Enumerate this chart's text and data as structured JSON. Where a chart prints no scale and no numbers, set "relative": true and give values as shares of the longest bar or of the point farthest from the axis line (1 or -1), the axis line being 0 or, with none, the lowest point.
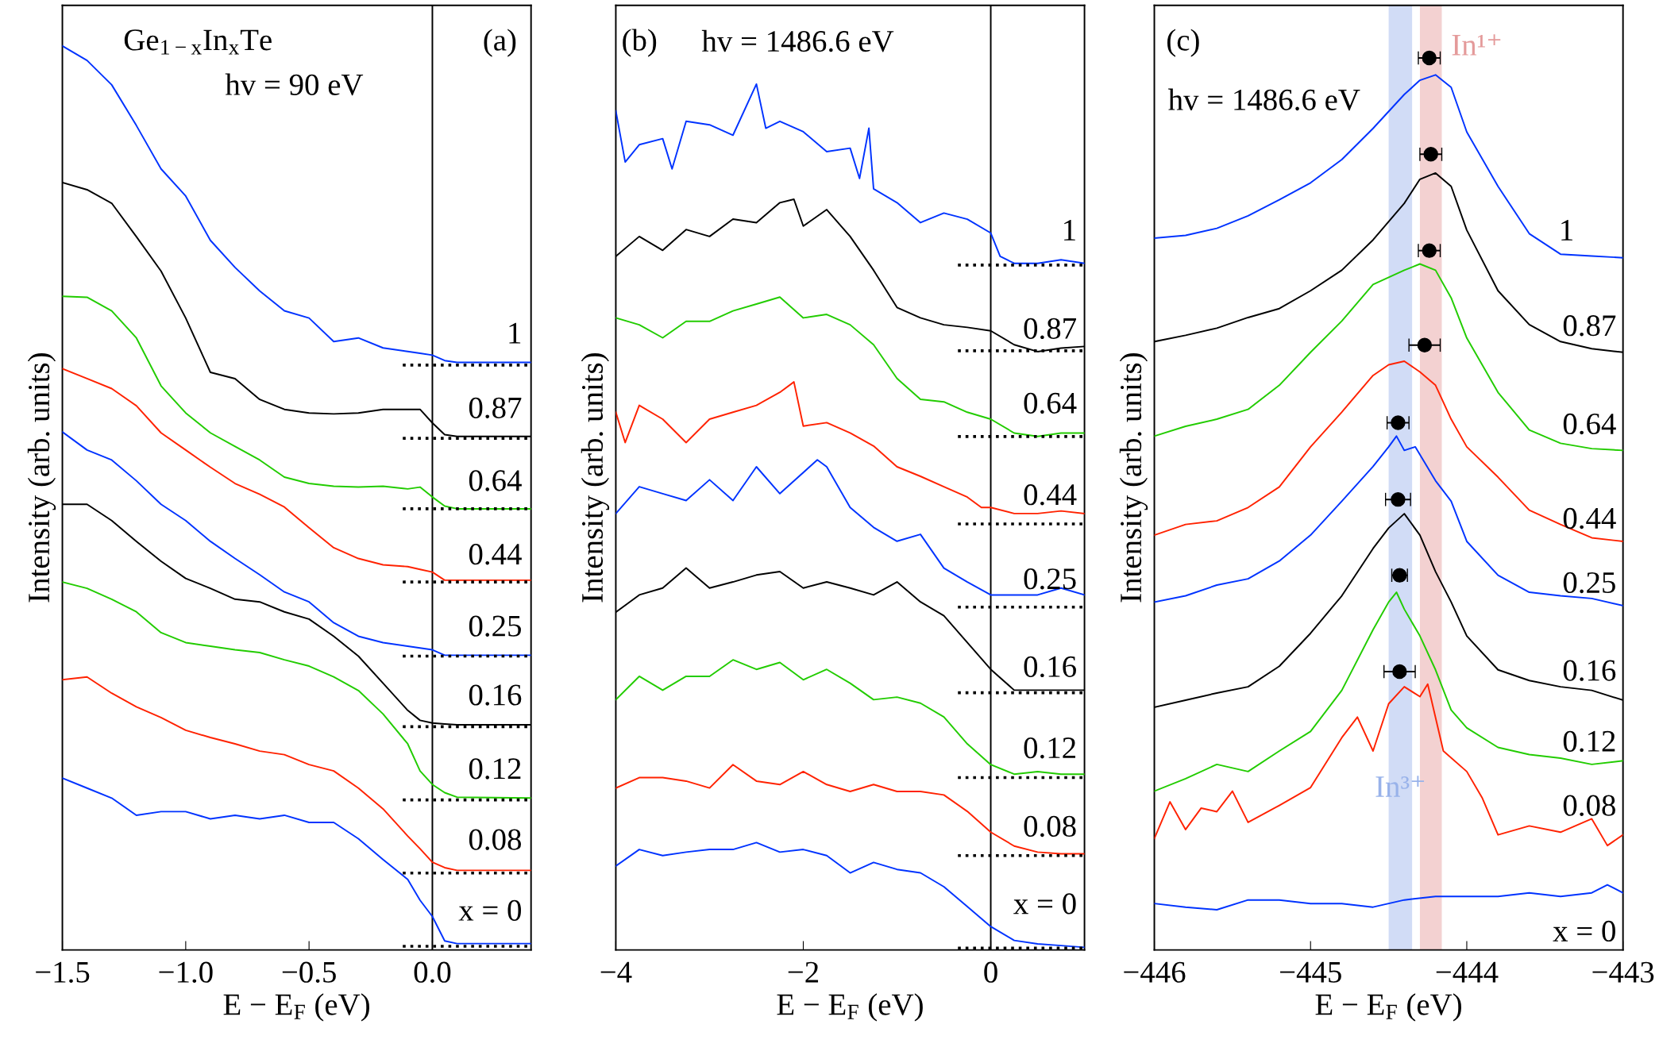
{
  "chart_data": [
    {
      "type": "line",
      "relative": true,
      "xlabel": "E − E$_{F}$ (eV)",
      "ylabel": "Intensity (arb. units)",
      "xlim": [
        -1.5,
        0.4
      ],
      "xticks": [
        {
          "value": -1.5,
          "label": "−1.5"
        },
        {
          "value": -1.0,
          "label": "−1.0"
        },
        {
          "value": -0.5,
          "label": "−0.5"
        },
        {
          "value": 0.0,
          "label": "0.0"
        }
      ],
      "tick_labels": "x",
      "grid": false,
      "legend": false,
      "marker": "none",
      "line_style": "solid",
      "ref_lines": [
        {
          "axis": "x",
          "value": 0,
          "color": "#000000",
          "line_style": "solid"
        }
      ],
      "annotations": [
        "(a)",
        "Ge$_{1−x}$In$_{x}$Te",
        "hv = 90 eV",
        "1",
        "0.87",
        "0.64",
        "0.44",
        "0.25",
        "0.16",
        "0.12",
        "0.08",
        "x = 0"
      ],
      "series": [
        {
          "color": "#0033ff",
          "x": [
            -1.5,
            -1.4,
            -1.3,
            -1.2,
            -1.1,
            -1.0,
            -0.9,
            -0.8,
            -0.7,
            -0.6,
            -0.5,
            -0.4,
            -0.3,
            -0.2,
            -0.1,
            -0.05,
            0,
            0.05,
            0.1,
            0.4
          ],
          "values": [
            1.0,
            0.984,
            0.957,
            0.912,
            0.864,
            0.834,
            0.785,
            0.755,
            0.729,
            0.707,
            0.699,
            0.673,
            0.677,
            0.666,
            0.662,
            0.66,
            0.658,
            0.652,
            0.65,
            0.65
          ]
        },
        {
          "color": "#000000",
          "x": [
            -1.5,
            -1.4,
            -1.3,
            -1.2,
            -1.1,
            -1.0,
            -0.9,
            -0.8,
            -0.7,
            -0.6,
            -0.5,
            -0.4,
            -0.3,
            -0.2,
            -0.1,
            -0.05,
            0,
            0.05,
            0.1,
            0.4
          ],
          "values": [
            0.849,
            0.841,
            0.826,
            0.789,
            0.751,
            0.699,
            0.639,
            0.632,
            0.609,
            0.598,
            0.594,
            0.593,
            0.594,
            0.598,
            0.598,
            0.598,
            0.583,
            0.57,
            0.568,
            0.568
          ]
        },
        {
          "color": "#22cc00",
          "x": [
            -1.5,
            -1.4,
            -1.3,
            -1.2,
            -1.1,
            -1.0,
            -0.9,
            -0.8,
            -0.7,
            -0.6,
            -0.5,
            -0.4,
            -0.3,
            -0.2,
            -0.1,
            -0.05,
            0,
            0.05,
            0.1,
            0.4
          ],
          "values": [
            0.723,
            0.722,
            0.707,
            0.677,
            0.624,
            0.594,
            0.572,
            0.557,
            0.542,
            0.523,
            0.516,
            0.513,
            0.512,
            0.513,
            0.51,
            0.512,
            0.501,
            0.491,
            0.488,
            0.488
          ]
        },
        {
          "color": "#ff2200",
          "x": [
            -1.5,
            -1.4,
            -1.3,
            -1.2,
            -1.1,
            -1.0,
            -0.9,
            -0.8,
            -0.7,
            -0.6,
            -0.5,
            -0.4,
            -0.3,
            -0.2,
            -0.1,
            -0.05,
            0,
            0.05,
            0.1,
            0.4
          ],
          "values": [
            0.643,
            0.632,
            0.621,
            0.602,
            0.572,
            0.553,
            0.534,
            0.516,
            0.504,
            0.49,
            0.467,
            0.445,
            0.433,
            0.426,
            0.424,
            0.421,
            0.418,
            0.409,
            0.409,
            0.409
          ]
        },
        {
          "color": "#0033ff",
          "x": [
            -1.5,
            -1.4,
            -1.3,
            -1.2,
            -1.1,
            -1.0,
            -0.9,
            -0.8,
            -0.7,
            -0.6,
            -0.5,
            -0.4,
            -0.3,
            -0.2,
            -0.1,
            -0.05,
            0,
            0.05,
            0.1,
            0.4
          ],
          "values": [
            0.573,
            0.553,
            0.542,
            0.519,
            0.493,
            0.475,
            0.452,
            0.433,
            0.415,
            0.396,
            0.385,
            0.362,
            0.347,
            0.34,
            0.336,
            0.334,
            0.332,
            0.326,
            0.326,
            0.326
          ]
        },
        {
          "color": "#000000",
          "x": [
            -1.5,
            -1.4,
            -1.3,
            -1.2,
            -1.1,
            -1.0,
            -0.9,
            -0.8,
            -0.7,
            -0.6,
            -0.5,
            -0.4,
            -0.3,
            -0.2,
            -0.1,
            -0.05,
            0,
            0.05,
            0.1,
            0.4
          ],
          "values": [
            0.493,
            0.493,
            0.475,
            0.452,
            0.43,
            0.411,
            0.4,
            0.388,
            0.385,
            0.374,
            0.366,
            0.347,
            0.325,
            0.295,
            0.265,
            0.254,
            0.251,
            0.25,
            0.249,
            0.249
          ]
        },
        {
          "color": "#22cc00",
          "x": [
            -1.5,
            -1.4,
            -1.3,
            -1.2,
            -1.1,
            -1.0,
            -0.9,
            -0.8,
            -0.7,
            -0.6,
            -0.5,
            -0.4,
            -0.3,
            -0.2,
            -0.1,
            -0.05,
            0,
            0.05,
            0.1,
            0.4
          ],
          "values": [
            0.407,
            0.4,
            0.388,
            0.374,
            0.351,
            0.34,
            0.336,
            0.332,
            0.329,
            0.321,
            0.314,
            0.302,
            0.287,
            0.261,
            0.228,
            0.198,
            0.183,
            0.174,
            0.169,
            0.168
          ]
        },
        {
          "color": "#ff2200",
          "x": [
            -1.5,
            -1.4,
            -1.3,
            -1.2,
            -1.1,
            -1.0,
            -0.9,
            -0.8,
            -0.7,
            -0.6,
            -0.5,
            -0.4,
            -0.3,
            -0.2,
            -0.1,
            -0.05,
            0,
            0.05,
            0.1,
            0.4
          ],
          "values": [
            0.299,
            0.302,
            0.284,
            0.269,
            0.257,
            0.243,
            0.235,
            0.228,
            0.22,
            0.216,
            0.205,
            0.198,
            0.179,
            0.156,
            0.126,
            0.112,
            0.097,
            0.091,
            0.088,
            0.088
          ]
        },
        {
          "color": "#0033ff",
          "x": [
            -1.5,
            -1.4,
            -1.3,
            -1.2,
            -1.1,
            -1.0,
            -0.9,
            -0.8,
            -0.7,
            -0.6,
            -0.5,
            -0.4,
            -0.3,
            -0.2,
            -0.1,
            -0.05,
            0,
            0.05,
            0.1,
            0.4
          ],
          "values": [
            0.19,
            0.179,
            0.168,
            0.149,
            0.153,
            0.153,
            0.145,
            0.149,
            0.145,
            0.149,
            0.141,
            0.141,
            0.123,
            0.1,
            0.078,
            0.055,
            0.037,
            0.01,
            0.007,
            0.007
          ]
        },
        {
          "type": "line",
          "line_style": "dotted",
          "color": "#000000",
          "x": [
            -0.12,
            0.4
          ],
          "values": [
            0.647,
            0.647
          ]
        },
        {
          "type": "line",
          "line_style": "dotted",
          "color": "#000000",
          "x": [
            -0.12,
            0.4
          ],
          "values": [
            0.566,
            0.566
          ]
        },
        {
          "type": "line",
          "line_style": "dotted",
          "color": "#000000",
          "x": [
            -0.12,
            0.4
          ],
          "values": [
            0.488,
            0.488
          ]
        },
        {
          "type": "line",
          "line_style": "dotted",
          "color": "#000000",
          "x": [
            -0.12,
            0.4
          ],
          "values": [
            0.407,
            0.407
          ]
        },
        {
          "type": "line",
          "line_style": "dotted",
          "color": "#000000",
          "x": [
            -0.12,
            0.4
          ],
          "values": [
            0.325,
            0.325
          ]
        },
        {
          "type": "line",
          "line_style": "dotted",
          "color": "#000000",
          "x": [
            -0.12,
            0.4
          ],
          "values": [
            0.247,
            0.247
          ]
        },
        {
          "type": "line",
          "line_style": "dotted",
          "color": "#000000",
          "x": [
            -0.12,
            0.4
          ],
          "values": [
            0.166,
            0.166
          ]
        },
        {
          "type": "line",
          "line_style": "dotted",
          "color": "#000000",
          "x": [
            -0.12,
            0.4
          ],
          "values": [
            0.085,
            0.085
          ]
        },
        {
          "type": "line",
          "line_style": "dotted",
          "color": "#000000",
          "x": [
            -0.12,
            0.4
          ],
          "values": [
            0.004,
            0.004
          ]
        }
      ]
    },
    {
      "type": "line",
      "relative": true,
      "xlabel": "E − E$_{F}$ (eV)",
      "ylabel": "Intensity (arb. units)",
      "xlim": [
        -4,
        1
      ],
      "xticks": [
        {
          "value": -4,
          "label": "−4"
        },
        {
          "value": -2,
          "label": "−2"
        },
        0
      ],
      "tick_labels": "x",
      "grid": false,
      "legend": false,
      "marker": "none",
      "line_style": "solid",
      "ref_lines": [
        {
          "axis": "x",
          "value": 0,
          "color": "#000000",
          "line_style": "solid"
        }
      ],
      "annotations": [
        "(b)",
        "hv = 1486.6 eV",
        "1",
        "0.87",
        "0.64",
        "0.44",
        "0.25",
        "0.16",
        "0.12",
        "0.08",
        "x = 0"
      ],
      "series": [
        {
          "color": "#0033ff",
          "x": [
            -4,
            -3.9,
            -3.75,
            -3.5,
            -3.4,
            -3.25,
            -3,
            -2.75,
            -2.5,
            -2.4,
            -2.25,
            -2,
            -1.75,
            -1.5,
            -1.4,
            -1.3,
            -1.25,
            -1,
            -0.75,
            -0.5,
            -0.25,
            0,
            0.1,
            0.25,
            0.5,
            0.75,
            1
          ],
          "values": [
            0.969,
            0.91,
            0.93,
            0.937,
            0.902,
            0.957,
            0.953,
            0.941,
            1.0,
            0.949,
            0.957,
            0.945,
            0.922,
            0.926,
            0.891,
            0.949,
            0.879,
            0.863,
            0.84,
            0.851,
            0.844,
            0.828,
            0.801,
            0.793,
            0.793,
            0.797,
            0.793
          ]
        },
        {
          "color": "#000000",
          "x": [
            -4,
            -3.75,
            -3.5,
            -3.25,
            -3,
            -2.75,
            -2.5,
            -2.25,
            -2.1,
            -2,
            -1.75,
            -1.5,
            -1.25,
            -1,
            -0.75,
            -0.5,
            -0.25,
            0,
            0.25,
            0.5,
            0.75,
            1
          ],
          "values": [
            0.801,
            0.824,
            0.808,
            0.832,
            0.824,
            0.844,
            0.84,
            0.863,
            0.867,
            0.836,
            0.855,
            0.824,
            0.785,
            0.742,
            0.73,
            0.722,
            0.719,
            0.715,
            0.699,
            0.691,
            0.695,
            0.697
          ]
        },
        {
          "color": "#22cc00",
          "x": [
            -4,
            -3.75,
            -3.5,
            -3.25,
            -3,
            -2.75,
            -2.5,
            -2.25,
            -2,
            -1.75,
            -1.5,
            -1.25,
            -1,
            -0.75,
            -0.5,
            -0.25,
            0,
            0.25,
            0.5,
            0.75,
            1
          ],
          "values": [
            0.73,
            0.722,
            0.707,
            0.726,
            0.726,
            0.738,
            0.746,
            0.754,
            0.73,
            0.734,
            0.722,
            0.699,
            0.66,
            0.636,
            0.633,
            0.621,
            0.613,
            0.597,
            0.593,
            0.597,
            0.597
          ]
        },
        {
          "color": "#ff2200",
          "x": [
            -4,
            -3.9,
            -3.75,
            -3.5,
            -3.25,
            -3,
            -2.75,
            -2.5,
            -2.25,
            -2.1,
            -2,
            -1.75,
            -1.5,
            -1.25,
            -1,
            -0.75,
            -0.5,
            -0.25,
            -0.1,
            0,
            0.25,
            0.5,
            0.75,
            1
          ],
          "values": [
            0.621,
            0.586,
            0.629,
            0.613,
            0.586,
            0.613,
            0.621,
            0.629,
            0.644,
            0.656,
            0.605,
            0.609,
            0.597,
            0.582,
            0.558,
            0.547,
            0.535,
            0.523,
            0.511,
            0.511,
            0.504,
            0.504,
            0.507,
            0.504
          ]
        },
        {
          "color": "#0033ff",
          "x": [
            -4,
            -3.75,
            -3.5,
            -3.25,
            -3,
            -2.75,
            -2.5,
            -2.25,
            -1.85,
            -1.75,
            -1.5,
            -1.25,
            -1,
            -0.75,
            -0.5,
            -0.25,
            0,
            0.25,
            0.5,
            0.75,
            1
          ],
          "values": [
            0.504,
            0.535,
            0.527,
            0.519,
            0.543,
            0.519,
            0.558,
            0.527,
            0.566,
            0.558,
            0.511,
            0.488,
            0.472,
            0.48,
            0.441,
            0.425,
            0.41,
            0.41,
            0.41,
            0.418,
            0.41
          ]
        },
        {
          "color": "#000000",
          "x": [
            -4,
            -3.75,
            -3.5,
            -3.25,
            -3,
            -2.75,
            -2.5,
            -2.25,
            -2,
            -1.75,
            -1.5,
            -1.25,
            -1,
            -0.75,
            -0.5,
            -0.25,
            0,
            0.25,
            0.5,
            0.75,
            1
          ],
          "values": [
            0.39,
            0.41,
            0.418,
            0.441,
            0.418,
            0.425,
            0.433,
            0.437,
            0.418,
            0.425,
            0.418,
            0.41,
            0.425,
            0.402,
            0.386,
            0.355,
            0.324,
            0.3,
            0.3,
            0.3,
            0.3
          ]
        },
        {
          "color": "#22cc00",
          "x": [
            -4,
            -3.75,
            -3.5,
            -3.25,
            -3,
            -2.75,
            -2.5,
            -2.25,
            -2,
            -1.75,
            -1.5,
            -1.25,
            -1,
            -0.75,
            -0.5,
            -0.25,
            0,
            0.25,
            0.5,
            0.75,
            1
          ],
          "values": [
            0.289,
            0.316,
            0.3,
            0.316,
            0.316,
            0.335,
            0.324,
            0.332,
            0.312,
            0.324,
            0.308,
            0.289,
            0.292,
            0.285,
            0.269,
            0.238,
            0.214,
            0.203,
            0.206,
            0.203,
            0.203
          ]
        },
        {
          "color": "#ff2200",
          "x": [
            -4,
            -3.75,
            -3.5,
            -3.25,
            -3,
            -2.75,
            -2.5,
            -2.25,
            -2,
            -1.75,
            -1.5,
            -1.25,
            -1,
            -0.75,
            -0.5,
            -0.25,
            0,
            0.25,
            0.5,
            0.75,
            1
          ],
          "values": [
            0.187,
            0.199,
            0.199,
            0.195,
            0.187,
            0.214,
            0.195,
            0.191,
            0.206,
            0.191,
            0.183,
            0.191,
            0.183,
            0.183,
            0.179,
            0.16,
            0.136,
            0.12,
            0.113,
            0.111,
            0.111
          ]
        },
        {
          "color": "#0033ff",
          "x": [
            -4,
            -3.75,
            -3.5,
            -3.25,
            -3,
            -2.75,
            -2.5,
            -2.25,
            -2,
            -1.75,
            -1.5,
            -1.25,
            -1,
            -0.75,
            -0.5,
            -0.25,
            0,
            0.25,
            0.5,
            0.75,
            1
          ],
          "values": [
            0.097,
            0.116,
            0.109,
            0.113,
            0.116,
            0.116,
            0.124,
            0.113,
            0.116,
            0.109,
            0.089,
            0.101,
            0.093,
            0.089,
            0.073,
            0.05,
            0.027,
            0.011,
            0.007,
            0.005,
            0.003
          ]
        },
        {
          "type": "line",
          "line_style": "dotted",
          "color": "#000000",
          "x": [
            -0.35,
            1
          ],
          "values": [
            0.791,
            0.791
          ]
        },
        {
          "type": "line",
          "line_style": "dotted",
          "color": "#000000",
          "x": [
            -0.35,
            1
          ],
          "values": [
            0.692,
            0.692
          ]
        },
        {
          "type": "line",
          "line_style": "dotted",
          "color": "#000000",
          "x": [
            -0.35,
            1
          ],
          "values": [
            0.593,
            0.593
          ]
        },
        {
          "type": "line",
          "line_style": "dotted",
          "color": "#000000",
          "x": [
            -0.35,
            1
          ],
          "values": [
            0.492,
            0.492
          ]
        },
        {
          "type": "line",
          "line_style": "dotted",
          "color": "#000000",
          "x": [
            -0.35,
            1
          ],
          "values": [
            0.396,
            0.396
          ]
        },
        {
          "type": "line",
          "line_style": "dotted",
          "color": "#000000",
          "x": [
            -0.35,
            1
          ],
          "values": [
            0.297,
            0.297
          ]
        },
        {
          "type": "line",
          "line_style": "dotted",
          "color": "#000000",
          "x": [
            -0.35,
            1
          ],
          "values": [
            0.199,
            0.199
          ]
        },
        {
          "type": "line",
          "line_style": "dotted",
          "color": "#000000",
          "x": [
            -0.35,
            1
          ],
          "values": [
            0.109,
            0.109
          ]
        },
        {
          "type": "line",
          "line_style": "dotted",
          "color": "#000000",
          "x": [
            -0.35,
            1
          ],
          "values": [
            0.002,
            0.002
          ]
        }
      ]
    },
    {
      "type": "line",
      "relative": true,
      "xlabel": "E − E$_{F}$ (eV)",
      "ylabel": "Intensity (arb. units)",
      "xlim": [
        -446,
        -443
      ],
      "xticks": [
        {
          "value": -446,
          "label": "−446"
        },
        {
          "value": -445,
          "label": "−445"
        },
        {
          "value": -444,
          "label": "−444"
        },
        {
          "value": -443,
          "label": "−443"
        }
      ],
      "tick_labels": "x",
      "grid": false,
      "legend": false,
      "marker": "none",
      "line_style": "solid",
      "bands": [
        {
          "axis": "x",
          "from": -444.3,
          "to": -444.16,
          "label": "In¹⁺",
          "color": "#e49a9a"
        },
        {
          "axis": "x",
          "from": -444.5,
          "to": -444.35,
          "label": "In³⁺",
          "color": "#98b2ea"
        }
      ],
      "annotations": [
        "(c)",
        "hv = 1486.6 eV",
        "1",
        "0.87",
        "0.64",
        "0.44",
        "0.25",
        "0.16",
        "0.12",
        "0.08",
        "x = 0"
      ],
      "series": [
        {
          "color": "#0033ff",
          "x": [
            -446,
            -445.8,
            -445.6,
            -445.4,
            -445.2,
            -445,
            -444.8,
            -444.6,
            -444.4,
            -444.3,
            -444.2,
            -444.1,
            -444,
            -443.8,
            -443.6,
            -443.4,
            -443.2,
            -443
          ],
          "values": [
            0.798,
            0.801,
            0.809,
            0.823,
            0.841,
            0.86,
            0.886,
            0.921,
            0.959,
            0.975,
            0.981,
            0.967,
            0.917,
            0.856,
            0.803,
            0.78,
            0.778,
            0.776
          ]
        },
        {
          "color": "#000000",
          "x": [
            -446,
            -445.8,
            -445.6,
            -445.4,
            -445.2,
            -445,
            -444.8,
            -444.6,
            -444.4,
            -444.3,
            -444.2,
            -444.1,
            -444,
            -443.8,
            -443.6,
            -443.4,
            -443.2,
            -443
          ],
          "values": [
            0.682,
            0.689,
            0.697,
            0.709,
            0.719,
            0.739,
            0.762,
            0.796,
            0.837,
            0.864,
            0.871,
            0.856,
            0.807,
            0.739,
            0.701,
            0.682,
            0.674,
            0.67
          ]
        },
        {
          "color": "#22cc00",
          "x": [
            -446,
            -445.8,
            -445.6,
            -445.4,
            -445.2,
            -445,
            -444.8,
            -444.6,
            -444.4,
            -444.3,
            -444.2,
            -444.1,
            -444,
            -443.8,
            -443.6,
            -443.4,
            -443.2,
            -443
          ],
          "values": [
            0.576,
            0.587,
            0.595,
            0.606,
            0.633,
            0.67,
            0.705,
            0.746,
            0.762,
            0.769,
            0.762,
            0.731,
            0.686,
            0.625,
            0.583,
            0.568,
            0.562,
            0.56
          ]
        },
        {
          "color": "#ff2200",
          "x": [
            -446,
            -445.8,
            -445.6,
            -445.4,
            -445.2,
            -445,
            -444.8,
            -444.6,
            -444.5,
            -444.4,
            -444.3,
            -444.2,
            -444.1,
            -444,
            -443.8,
            -443.6,
            -443.4,
            -443.2,
            -443
          ],
          "values": [
            0.465,
            0.477,
            0.481,
            0.496,
            0.519,
            0.564,
            0.603,
            0.644,
            0.656,
            0.66,
            0.648,
            0.633,
            0.595,
            0.564,
            0.53,
            0.493,
            0.477,
            0.462,
            0.458
          ]
        },
        {
          "color": "#0033ff",
          "x": [
            -446,
            -445.8,
            -445.6,
            -445.4,
            -445.2,
            -445,
            -444.8,
            -444.6,
            -444.5,
            -444.45,
            -444.4,
            -444.33,
            -444.2,
            -444.1,
            -444,
            -443.8,
            -443.6,
            -443.4,
            -443.2,
            -443
          ],
          "values": [
            0.39,
            0.397,
            0.409,
            0.416,
            0.436,
            0.465,
            0.503,
            0.542,
            0.564,
            0.576,
            0.56,
            0.564,
            0.526,
            0.503,
            0.458,
            0.42,
            0.401,
            0.397,
            0.394,
            0.386
          ]
        },
        {
          "color": "#000000",
          "x": [
            -446,
            -445.8,
            -445.6,
            -445.4,
            -445.2,
            -445,
            -444.8,
            -444.6,
            -444.5,
            -444.4,
            -444.3,
            -444.2,
            -444.1,
            -444,
            -443.8,
            -443.6,
            -443.4,
            -443.2,
            -443
          ],
          "values": [
            0.272,
            0.28,
            0.288,
            0.295,
            0.318,
            0.355,
            0.397,
            0.45,
            0.473,
            0.489,
            0.465,
            0.424,
            0.39,
            0.352,
            0.314,
            0.302,
            0.295,
            0.291,
            0.28
          ]
        },
        {
          "color": "#22cc00",
          "x": [
            -446,
            -445.8,
            -445.6,
            -445.4,
            -445.2,
            -445,
            -444.8,
            -444.6,
            -444.5,
            -444.45,
            -444.4,
            -444.3,
            -444.2,
            -444.1,
            -444,
            -443.8,
            -443.6,
            -443.4,
            -443.2,
            -443
          ],
          "values": [
            0.178,
            0.192,
            0.208,
            0.2,
            0.223,
            0.245,
            0.291,
            0.359,
            0.39,
            0.401,
            0.382,
            0.352,
            0.314,
            0.269,
            0.249,
            0.227,
            0.219,
            0.215,
            0.208,
            0.212
          ]
        },
        {
          "color": "#ff2200",
          "x": [
            -446,
            -445.9,
            -445.8,
            -445.7,
            -445.6,
            -445.5,
            -445.4,
            -445.2,
            -445,
            -444.8,
            -444.7,
            -444.6,
            -444.5,
            -444.4,
            -444.3,
            -444.25,
            -444.15,
            -444,
            -443.9,
            -443.8,
            -443.6,
            -443.4,
            -443.2,
            -443.1,
            -443
          ],
          "values": [
            0.125,
            0.166,
            0.135,
            0.159,
            0.155,
            0.178,
            0.143,
            0.162,
            0.182,
            0.238,
            0.261,
            0.223,
            0.276,
            0.295,
            0.284,
            0.298,
            0.223,
            0.2,
            0.17,
            0.129,
            0.139,
            0.132,
            0.147,
            0.117,
            0.129
          ]
        },
        {
          "color": "#0033ff",
          "x": [
            -446,
            -445.8,
            -445.6,
            -445.4,
            -445.2,
            -445,
            -444.8,
            -444.6,
            -444.4,
            -444.2,
            -444,
            -443.8,
            -443.6,
            -443.4,
            -443.2,
            -443.1,
            -443
          ],
          "values": [
            0.052,
            0.048,
            0.045,
            0.056,
            0.056,
            0.052,
            0.052,
            0.048,
            0.056,
            0.06,
            0.06,
            0.06,
            0.064,
            0.06,
            0.064,
            0.073,
            0.064
          ]
        },
        {
          "type": "scatter",
          "marker": "circle",
          "color": "#000000",
          "x": [
            -444.24,
            -444.23,
            -444.24,
            -444.27,
            -444.44,
            -444.44,
            -444.43,
            -444.43
          ],
          "values": [
            1.0,
            0.892,
            0.784,
            0.678,
            0.591,
            0.505,
            0.42,
            0.312
          ],
          "xerrors": [
            0.07,
            0.07,
            0.07,
            0.1,
            0.07,
            0.08,
            0.05,
            0.1
          ]
        }
      ]
    }
  ]
}
